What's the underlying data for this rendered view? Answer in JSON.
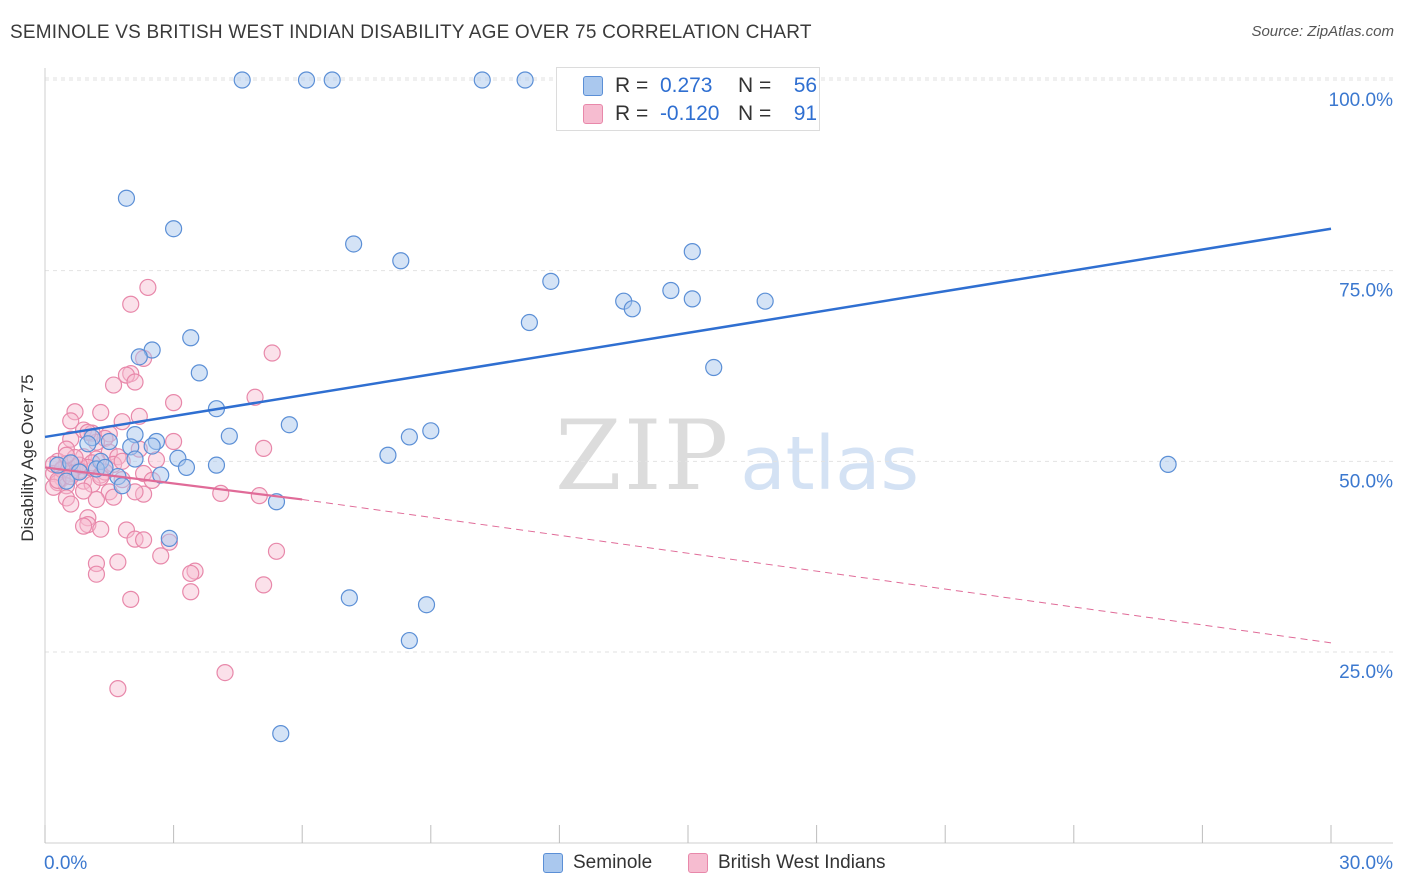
{
  "title": "SEMINOLE VS BRITISH WEST INDIAN DISABILITY AGE OVER 75 CORRELATION CHART",
  "source": "Source: ZipAtlas.com",
  "watermark": {
    "zip": "ZIP",
    "atlas": "atlas"
  },
  "legend_top": {
    "rows": [
      {
        "r_label": "R =",
        "r_value": "0.273",
        "n_label": "N =",
        "n_value": "56"
      },
      {
        "r_label": "R =",
        "r_value": "-0.120",
        "n_label": "N =",
        "n_value": "91"
      }
    ]
  },
  "colors": {
    "seminole_fill": "#aac8ee",
    "seminole_stroke": "#5b8fd6",
    "seminole_line": "#2f6fd1",
    "bwi_fill": "#f6bcd0",
    "bwi_stroke": "#e888aa",
    "bwi_line": "#e06b98",
    "grid": "#e2e2e2",
    "axis_label": "#3b78cf"
  },
  "chart_data": {
    "type": "scatter",
    "title": "SEMINOLE VS BRITISH WEST INDIAN DISABILITY AGE OVER 75 CORRELATION CHART",
    "xlabel": "",
    "ylabel": "Disability Age Over 75",
    "xlim": [
      0,
      30
    ],
    "ylim": [
      0,
      105
    ],
    "x_tick_labels": [
      "0.0%",
      "30.0%"
    ],
    "y_ticks": [
      25,
      50,
      75,
      100
    ],
    "y_tick_labels": [
      "25.0%",
      "50.0%",
      "75.0%",
      "100.0%"
    ],
    "legend": [
      "Seminole",
      "British West Indians"
    ],
    "series": [
      {
        "name": "Seminole",
        "r": 0.273,
        "n": 56,
        "trend": {
          "x": [
            0,
            30
          ],
          "y": [
            53.2,
            80.5
          ],
          "style": "solid"
        },
        "points": [
          [
            4.6,
            100
          ],
          [
            6.1,
            100
          ],
          [
            6.7,
            100
          ],
          [
            10.2,
            100
          ],
          [
            11.2,
            100
          ],
          [
            1.9,
            84.5
          ],
          [
            3.0,
            80.5
          ],
          [
            7.2,
            78.5
          ],
          [
            8.3,
            76.3
          ],
          [
            15.1,
            77.5
          ],
          [
            11.8,
            73.6
          ],
          [
            14.6,
            72.4
          ],
          [
            15.1,
            71.3
          ],
          [
            13.5,
            71.0
          ],
          [
            16.8,
            71.0
          ],
          [
            13.7,
            70.0
          ],
          [
            11.3,
            68.2
          ],
          [
            3.4,
            66.2
          ],
          [
            2.5,
            64.6
          ],
          [
            2.2,
            63.7
          ],
          [
            3.6,
            61.6
          ],
          [
            15.6,
            62.3
          ],
          [
            4.0,
            56.9
          ],
          [
            5.7,
            54.8
          ],
          [
            9.0,
            54.0
          ],
          [
            8.5,
            53.2
          ],
          [
            4.3,
            53.3
          ],
          [
            2.1,
            53.5
          ],
          [
            1.5,
            52.6
          ],
          [
            2.6,
            52.6
          ],
          [
            1.1,
            53.1
          ],
          [
            1.0,
            52.3
          ],
          [
            2.0,
            51.9
          ],
          [
            8.0,
            50.8
          ],
          [
            3.1,
            50.4
          ],
          [
            1.3,
            50.0
          ],
          [
            2.1,
            50.3
          ],
          [
            3.3,
            49.2
          ],
          [
            4.0,
            49.5
          ],
          [
            0.3,
            49.5
          ],
          [
            1.2,
            49.0
          ],
          [
            26.2,
            49.6
          ],
          [
            2.7,
            48.2
          ],
          [
            1.7,
            48.0
          ],
          [
            1.8,
            46.8
          ],
          [
            0.5,
            47.4
          ],
          [
            5.4,
            44.7
          ],
          [
            2.9,
            39.9
          ],
          [
            7.1,
            32.1
          ],
          [
            8.9,
            31.2
          ],
          [
            8.5,
            26.5
          ],
          [
            5.5,
            14.3
          ],
          [
            0.6,
            49.8
          ],
          [
            1.4,
            49.2
          ],
          [
            0.8,
            48.6
          ],
          [
            2.5,
            52.0
          ]
        ]
      },
      {
        "name": "British West Indians",
        "r": -0.12,
        "n": 91,
        "trend_solid": {
          "x": [
            0,
            6
          ],
          "y": [
            49.2,
            45.0
          ]
        },
        "trend_dashed": {
          "x": [
            6,
            30
          ],
          "y": [
            45.0,
            26.2
          ]
        },
        "points": [
          [
            2.4,
            72.8
          ],
          [
            2.0,
            70.6
          ],
          [
            5.3,
            64.2
          ],
          [
            2.3,
            63.5
          ],
          [
            2.0,
            61.5
          ],
          [
            1.9,
            61.3
          ],
          [
            2.1,
            60.4
          ],
          [
            1.6,
            60.0
          ],
          [
            4.9,
            58.4
          ],
          [
            3.0,
            57.7
          ],
          [
            0.7,
            56.5
          ],
          [
            1.3,
            56.4
          ],
          [
            2.2,
            55.9
          ],
          [
            1.8,
            55.2
          ],
          [
            0.6,
            55.3
          ],
          [
            0.9,
            54.1
          ],
          [
            1.5,
            53.6
          ],
          [
            1.1,
            53.7
          ],
          [
            0.6,
            52.9
          ],
          [
            1.4,
            53.0
          ],
          [
            3.0,
            52.6
          ],
          [
            1.2,
            52.5
          ],
          [
            5.1,
            51.7
          ],
          [
            1.5,
            51.2
          ],
          [
            0.5,
            51.6
          ],
          [
            0.9,
            50.6
          ],
          [
            1.7,
            50.6
          ],
          [
            1.2,
            50.3
          ],
          [
            2.6,
            50.2
          ],
          [
            0.3,
            50.0
          ],
          [
            0.5,
            49.7
          ],
          [
            1.1,
            49.8
          ],
          [
            1.6,
            49.6
          ],
          [
            0.7,
            49.2
          ],
          [
            0.4,
            49.0
          ],
          [
            1.0,
            49.2
          ],
          [
            0.8,
            48.8
          ],
          [
            0.2,
            48.4
          ],
          [
            0.6,
            48.4
          ],
          [
            1.3,
            48.2
          ],
          [
            2.3,
            48.4
          ],
          [
            0.4,
            47.8
          ],
          [
            1.8,
            47.6
          ],
          [
            0.9,
            47.4
          ],
          [
            0.3,
            47.2
          ],
          [
            1.1,
            47.0
          ],
          [
            0.5,
            46.8
          ],
          [
            0.2,
            46.6
          ],
          [
            1.5,
            46.0
          ],
          [
            2.3,
            45.7
          ],
          [
            4.1,
            45.8
          ],
          [
            5.0,
            45.5
          ],
          [
            0.5,
            45.2
          ],
          [
            1.2,
            45.0
          ],
          [
            1.6,
            45.3
          ],
          [
            0.6,
            44.4
          ],
          [
            1.0,
            42.6
          ],
          [
            1.0,
            41.7
          ],
          [
            0.9,
            41.5
          ],
          [
            1.3,
            41.1
          ],
          [
            1.9,
            41.0
          ],
          [
            2.1,
            39.8
          ],
          [
            2.3,
            39.7
          ],
          [
            2.9,
            39.4
          ],
          [
            5.4,
            38.2
          ],
          [
            2.7,
            37.6
          ],
          [
            1.2,
            36.6
          ],
          [
            1.7,
            36.8
          ],
          [
            3.5,
            35.6
          ],
          [
            3.4,
            35.3
          ],
          [
            1.2,
            35.2
          ],
          [
            5.1,
            33.8
          ],
          [
            3.4,
            32.9
          ],
          [
            2.0,
            31.9
          ],
          [
            4.2,
            22.3
          ],
          [
            1.7,
            20.2
          ],
          [
            2.2,
            51.6
          ],
          [
            1.8,
            50.0
          ],
          [
            0.4,
            48.9
          ],
          [
            0.8,
            49.5
          ],
          [
            0.3,
            47.5
          ],
          [
            1.4,
            48.6
          ],
          [
            0.7,
            50.5
          ],
          [
            2.1,
            46.0
          ],
          [
            1.0,
            53.8
          ],
          [
            0.2,
            49.6
          ],
          [
            0.9,
            46.1
          ],
          [
            0.5,
            50.8
          ],
          [
            1.3,
            47.9
          ],
          [
            0.6,
            48.0
          ],
          [
            2.5,
            47.5
          ]
        ]
      }
    ]
  }
}
